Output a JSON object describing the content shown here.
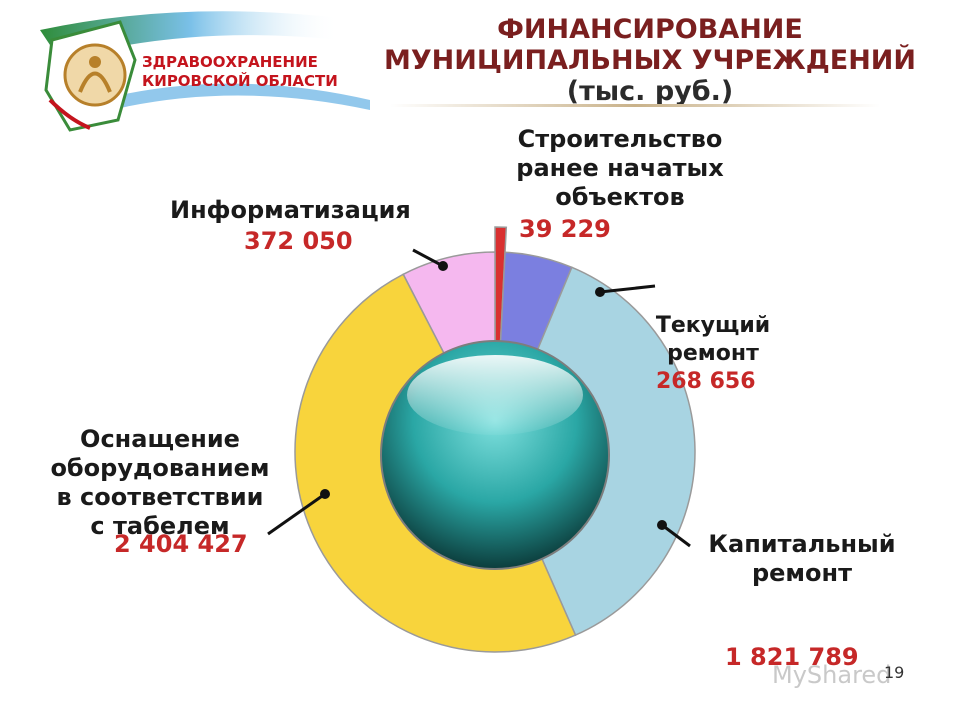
{
  "title": {
    "line1": "ФИНАНСИРОВАНИЕ",
    "line2": "МУНИЦИПАЛЬНЫХ УЧРЕЖДЕНИЙ",
    "unit": "(тыс. руб.)"
  },
  "logo": {
    "line1": "ЗДРАВООХРАНЕНИЕ",
    "line2": "КИРОВСКОЙ ОБЛАСТИ"
  },
  "page_number": "19",
  "watermark": "MyShared",
  "colors": {
    "title": "#7a1f1f",
    "value": "#c62828",
    "construction": "#7b7fe0",
    "current_repair": "#a8d4e2",
    "capital_repair": "#a8d4e2",
    "equipment": "#f8d43c",
    "informatization": "#f5b8ef",
    "center": "#2aa7a5"
  },
  "chart_data": {
    "type": "pie",
    "title": "ФИНАНСИРОВАНИЕ МУНИЦИПАЛЬНЫХ УЧРЕЖДЕНИЙ (тыс. руб.)",
    "unit": "тыс. руб.",
    "segments": [
      {
        "label": "Строительство ранее начатых объектов",
        "value": 39229,
        "display": "39 229",
        "color": "#d93030"
      },
      {
        "label": "Текущий ремонт",
        "value": 268656,
        "display": "268 656",
        "color": "#7b7fe0"
      },
      {
        "label": "Капитальный ремонт",
        "value": 1821789,
        "display": "1 821 789",
        "color": "#a8d4e2"
      },
      {
        "label": "Оснащение оборудованием в соответствии с табелем",
        "value": 2404427,
        "display": "2 404 427",
        "color": "#f8d43c"
      },
      {
        "label": "Информатизация",
        "value": 372050,
        "display": "372 050",
        "color": "#f5b8ef"
      }
    ],
    "labels": {
      "construction": [
        "Строительство",
        "ранее начатых",
        "объектов"
      ],
      "current_repair": [
        "Текущий",
        "ремонт"
      ],
      "capital_repair": [
        "Капитальный",
        "ремонт"
      ],
      "equipment": [
        "Оснащение",
        "оборудованием",
        "в соответствии",
        "с табелем"
      ],
      "informatization": [
        "Информатизация"
      ]
    }
  }
}
